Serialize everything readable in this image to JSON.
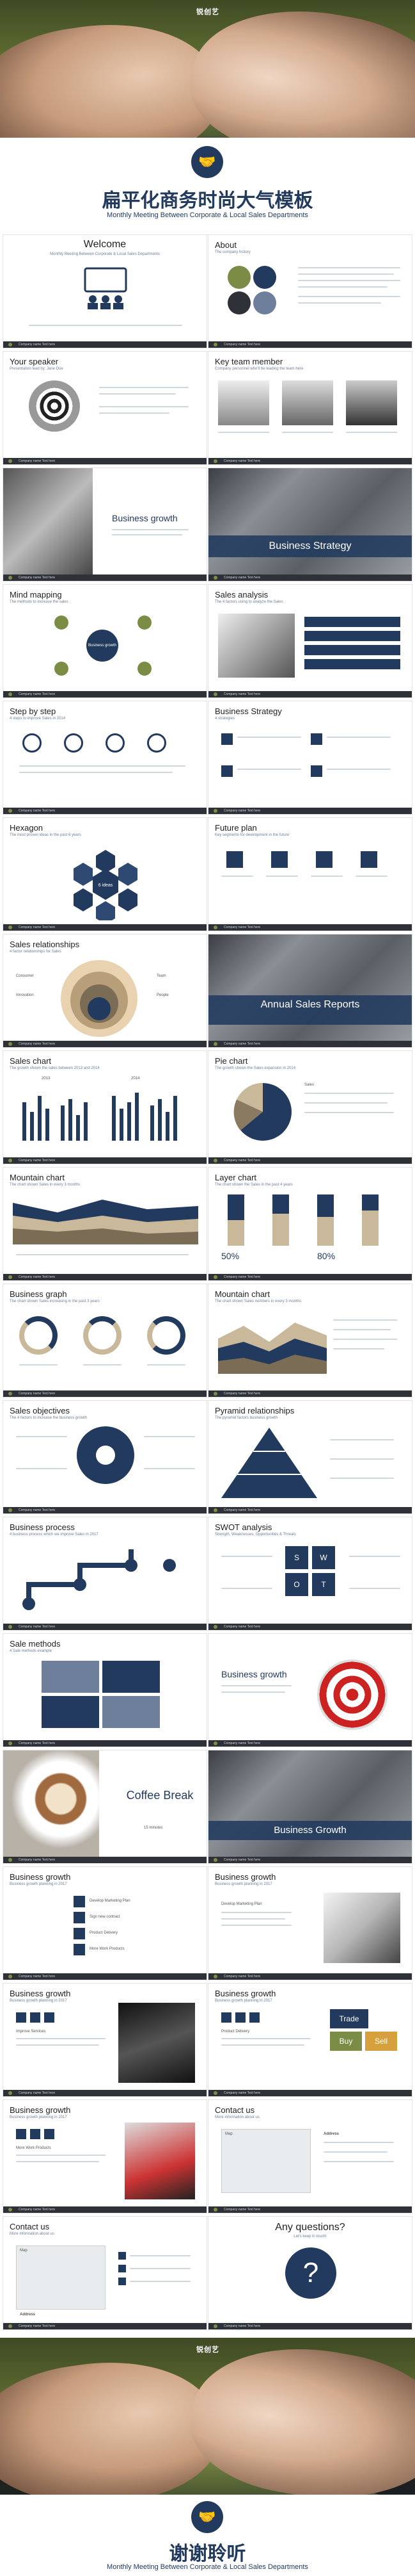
{
  "cover": {
    "logo": "锐创艺",
    "title": "扁平化商务时尚大气模板",
    "subtitle": "Monthly Meeting Between Corporate & Local Sales Departments"
  },
  "closing": {
    "logo": "锐创艺",
    "title": "谢谢聆听",
    "subtitle": "Monthly Meeting Between Corporate & Local Sales Departments"
  },
  "footer_text": "Company name    Text here",
  "slides": [
    {
      "title": "Welcome",
      "sub": "Monthly Meeting Between Corporate & Local Sales Departments"
    },
    {
      "title": "About",
      "sub": "The company history"
    },
    {
      "title": "Your speaker",
      "sub": "Presentation lead by: Jane Doe"
    },
    {
      "title": "Key team member",
      "sub": "Company personnel who'll be leading the team here"
    },
    {
      "title": "Business growth",
      "sub": ""
    },
    {
      "title": "Business Strategy",
      "sub": ""
    },
    {
      "title": "Mind mapping",
      "sub": "The methods to increase the sales"
    },
    {
      "title": "Sales analysis",
      "sub": "The 4 factors using to analyze the Sales"
    },
    {
      "title": "Step by step",
      "sub": "4 steps to improve Sales in 2014"
    },
    {
      "title": "Business Strategy",
      "sub": "4 strategies"
    },
    {
      "title": "Hexagon",
      "sub": "The most proven ideas in the past 6 years"
    },
    {
      "title": "Future plan",
      "sub": "Key segments for development in the future"
    },
    {
      "title": "Sales relationships",
      "sub": "4 factor relationships for Sales"
    },
    {
      "title": "Annual Sales Reports",
      "sub": ""
    },
    {
      "title": "Sales chart",
      "sub": "The growth shown the sales between 2013 and 2014"
    },
    {
      "title": "Pie chart",
      "sub": "The growth shown the Sales expansion in 2014"
    },
    {
      "title": "Mountain chart",
      "sub": "The chart shown Sales in every 3 months"
    },
    {
      "title": "Layer chart",
      "sub": "The chart shown the Sales in the past 4 years"
    },
    {
      "title": "Business graph",
      "sub": "The chart shown Sales increasing in the past 3 years"
    },
    {
      "title": "Mountain chart",
      "sub": "The chart shown Sales numbers in every 3 months"
    },
    {
      "title": "Sales objectives",
      "sub": "The 4 factors to increase the business growth"
    },
    {
      "title": "Pyramid relationships",
      "sub": "The pyramid factors business growth"
    },
    {
      "title": "Business process",
      "sub": "4 business process which we improve Sales in 2017"
    },
    {
      "title": "SWOT analysis",
      "sub": "Strength, Weaknesses, Opportunities & Threats"
    },
    {
      "title": "Sale methods",
      "sub": "4 Sale methods example"
    },
    {
      "title": "Business growth",
      "sub": ""
    },
    {
      "title": "Coffee Break",
      "sub": "15 minutes"
    },
    {
      "title": "Business Growth",
      "sub": ""
    },
    {
      "title": "Business growth",
      "sub": "Business growth planning in 2017"
    },
    {
      "title": "Business growth",
      "sub": "Business growth planning in 2017"
    },
    {
      "title": "Business growth",
      "sub": "Business growth planning in 2017"
    },
    {
      "title": "Business growth",
      "sub": "Business growth planning in 2017"
    },
    {
      "title": "Business growth",
      "sub": "Business growth planning in 2017"
    },
    {
      "title": "Contact us",
      "sub": "More information about us"
    },
    {
      "title": "Contact us",
      "sub": "More information about us"
    },
    {
      "title": "Any questions?",
      "sub": "Let's keep in touch!"
    }
  ],
  "labels": {
    "mind_center": "Business growth",
    "swot": [
      "S",
      "W",
      "O",
      "T"
    ],
    "hex_ideas": "6 ideas",
    "pie_sales": "Sales",
    "year_2013": "2013",
    "year_2014": "2014",
    "pct_50": "50%",
    "pct_80": "80%",
    "sales_rel": [
      "Consumer",
      "Innovation",
      "Team",
      "People"
    ],
    "growth_list": [
      "Develop Marketing Plan",
      "Sign new contract",
      "Product Delivery",
      "More Work Products"
    ],
    "growth_list2": [
      "Develop Marketing Plan",
      "Sign new contract",
      "Deliver & Support"
    ],
    "services": [
      "Improve Services",
      "Product Delivery",
      "More Work Products"
    ],
    "trade_keys": [
      "Trade",
      "Buy",
      "Sell"
    ],
    "question_mark": "?",
    "address_label": "Address",
    "map_label": "Map"
  },
  "colors": {
    "navy": "#213a5e",
    "olive": "#7b8d45",
    "footer": "#2e3238",
    "light_blue": "#6d7f9a"
  }
}
